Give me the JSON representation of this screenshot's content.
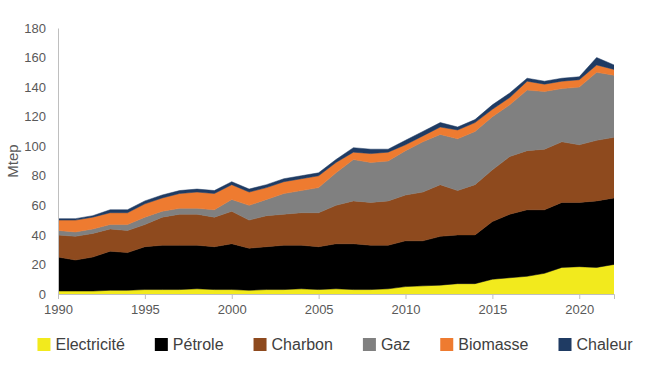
{
  "chart_data": {
    "type": "area",
    "stacked": true,
    "legend": "bottom",
    "grid": false,
    "y_label": "Mtep",
    "x": [
      1990,
      1991,
      1992,
      1993,
      1994,
      1995,
      1996,
      1997,
      1998,
      1999,
      2000,
      2001,
      2002,
      2003,
      2004,
      2005,
      2006,
      2007,
      2008,
      2009,
      2010,
      2011,
      2012,
      2013,
      2014,
      2015,
      2016,
      2017,
      2018,
      2019,
      2020,
      2021,
      2022
    ],
    "xlim": [
      1990,
      2022
    ],
    "xticks": [
      1990,
      1995,
      2000,
      2005,
      2010,
      2015,
      2020
    ],
    "ylim": [
      0,
      180
    ],
    "yticks": [
      0,
      20,
      40,
      60,
      80,
      100,
      120,
      140,
      160,
      180
    ],
    "series": [
      {
        "name": "Electricité",
        "color": "#f2ea1d",
        "values": [
          2,
          2,
          2,
          2.5,
          2.5,
          3,
          3,
          3,
          3.5,
          3,
          3,
          2.5,
          3,
          3,
          3.5,
          3,
          3.5,
          3,
          3,
          3.5,
          5,
          5.5,
          6,
          7,
          7,
          10,
          11,
          12,
          14,
          18,
          18.5,
          18,
          20
        ]
      },
      {
        "name": "Pétrole",
        "color": "#000000",
        "values": [
          23,
          21,
          23,
          26.5,
          25.5,
          29,
          30,
          30,
          29.5,
          29,
          31,
          28.5,
          29,
          30,
          29.5,
          29,
          30.5,
          31,
          30,
          29.5,
          31,
          30.5,
          33,
          33,
          33,
          39,
          43,
          45,
          43,
          44,
          43.5,
          45,
          45
        ]
      },
      {
        "name": "Charbon",
        "color": "#8e4a1e",
        "values": [
          15,
          16,
          16,
          15,
          15,
          15,
          19,
          21,
          21,
          20,
          22,
          19,
          21,
          21,
          22,
          23,
          26,
          29,
          29,
          30,
          31,
          33,
          35,
          30,
          34,
          35,
          39,
          40,
          41,
          41,
          39,
          41,
          41
        ]
      },
      {
        "name": "Gaz",
        "color": "#808080",
        "values": [
          3,
          3,
          3,
          3,
          4,
          5,
          4,
          4,
          4,
          5,
          8,
          10,
          11,
          14,
          15,
          17,
          22,
          28,
          27,
          27,
          30,
          34,
          34,
          35,
          36,
          36,
          35,
          41,
          39,
          36,
          39,
          46,
          42
        ]
      },
      {
        "name": "Biomasse",
        "color": "#ee7b30",
        "values": [
          7,
          8,
          8,
          8,
          8,
          9,
          9,
          10,
          11,
          11,
          10,
          9,
          8,
          8,
          8,
          8,
          7,
          5,
          6,
          6,
          4,
          4,
          5,
          6,
          6,
          5,
          5,
          6,
          5,
          5,
          5,
          5,
          4
        ]
      },
      {
        "name": "Chaleur",
        "color": "#1f3b63",
        "values": [
          1,
          1,
          1,
          2,
          2,
          2,
          2,
          2,
          2,
          2,
          2,
          2,
          2,
          2,
          2,
          2,
          2,
          3,
          3,
          2,
          3,
          3,
          3,
          2,
          2,
          3,
          3,
          2,
          2,
          2,
          2,
          5,
          3
        ]
      }
    ]
  }
}
